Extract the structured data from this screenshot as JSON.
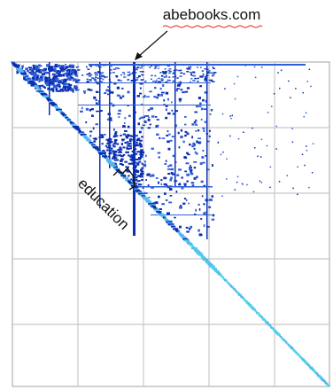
{
  "annotations": {
    "site_label": "abebooks.com",
    "cluster_label": "education"
  },
  "colors": {
    "grid": "#c8c8c8",
    "frame": "#b0b0b0",
    "dense_blue": "#0b2fb0",
    "mid_blue": "#2f5fd8",
    "light_blue": "#57b8ec",
    "cyan": "#4fd0ee",
    "spell_underline": "#e0201f",
    "ink": "#111111"
  }
}
